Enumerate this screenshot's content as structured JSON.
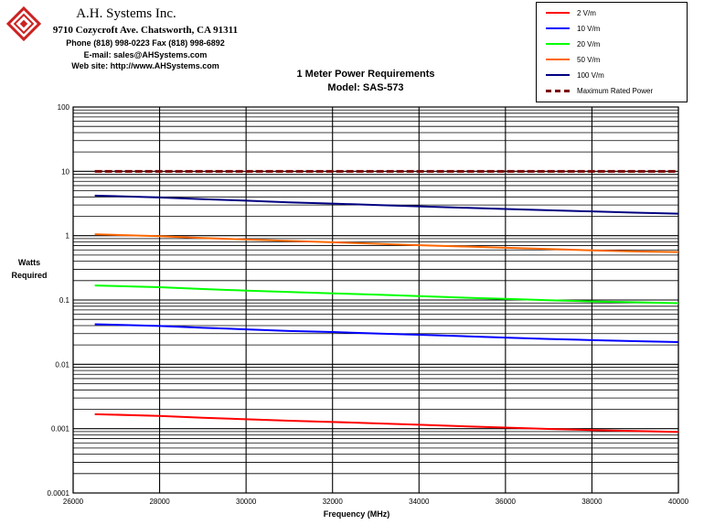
{
  "header": {
    "company": "A.H. Systems Inc.",
    "address": "9710 Cozycroft Ave. Chatsworth, CA 91311",
    "phone": "Phone (818) 998-0223 Fax (818) 998-6892",
    "email": "E-mail: sales@AHSystems.com",
    "website": "Web site: http://www.AHSystems.com",
    "logo_icon": "ahs-logo-icon"
  },
  "chart_data": {
    "type": "line",
    "title": "1 Meter Power Requirements",
    "subtitle": "Model: SAS-573",
    "xlabel": "Frequency (MHz)",
    "ylabel": "Watts Required",
    "xlim": [
      26000,
      40000
    ],
    "ylim": [
      0.0001,
      100
    ],
    "yscale": "log",
    "grid": true,
    "legend_position": "top-right",
    "x_ticks": [
      26000,
      28000,
      30000,
      32000,
      34000,
      36000,
      38000,
      40000
    ],
    "x_tick_labels": [
      "26000",
      "28000",
      "30000",
      "32000",
      "34000",
      "36000",
      "38000",
      "40000"
    ],
    "y_ticks": [
      100,
      10,
      1,
      0.1,
      0.01,
      0.001,
      0.0001
    ],
    "y_tick_labels": [
      "100",
      "10",
      "1",
      "0.1",
      "0.01",
      "0.001",
      "0.0001"
    ],
    "x": [
      26500,
      28000,
      29000,
      30000,
      31000,
      32000,
      33000,
      34000,
      35000,
      36000,
      37000,
      38000,
      39000,
      40000
    ],
    "series": [
      {
        "name": "2 V/m",
        "color": "#ff0000",
        "dash": "solid",
        "values": [
          0.00168,
          0.00158,
          0.00148,
          0.0014,
          0.00133,
          0.00127,
          0.00121,
          0.00115,
          0.00109,
          0.00104,
          0.00099,
          0.00095,
          0.00092,
          0.00089
        ]
      },
      {
        "name": "10 V/m",
        "color": "#0000ff",
        "dash": "solid",
        "values": [
          0.042,
          0.0395,
          0.037,
          0.035,
          0.033,
          0.0318,
          0.0302,
          0.0288,
          0.0274,
          0.026,
          0.0248,
          0.0238,
          0.0229,
          0.0222
        ]
      },
      {
        "name": "20 V/m",
        "color": "#00ff00",
        "dash": "solid",
        "values": [
          0.168,
          0.158,
          0.148,
          0.14,
          0.133,
          0.127,
          0.121,
          0.115,
          0.109,
          0.104,
          0.099,
          0.095,
          0.092,
          0.089
        ]
      },
      {
        "name": "50 V/m",
        "color": "#ff6600",
        "dash": "solid",
        "values": [
          1.05,
          0.98,
          0.92,
          0.87,
          0.83,
          0.79,
          0.75,
          0.71,
          0.68,
          0.65,
          0.62,
          0.59,
          0.57,
          0.555
        ]
      },
      {
        "name": "100 V/m",
        "color": "#000080",
        "dash": "solid",
        "values": [
          4.2,
          3.93,
          3.7,
          3.5,
          3.3,
          3.15,
          3.0,
          2.85,
          2.72,
          2.6,
          2.48,
          2.38,
          2.28,
          2.2
        ]
      },
      {
        "name": "Maximum Rated Power",
        "color": "#7a0000",
        "dash": "dashed",
        "values": [
          10,
          10,
          10,
          10,
          10,
          10,
          10,
          10,
          10,
          10,
          10,
          10,
          10,
          10
        ]
      }
    ]
  }
}
